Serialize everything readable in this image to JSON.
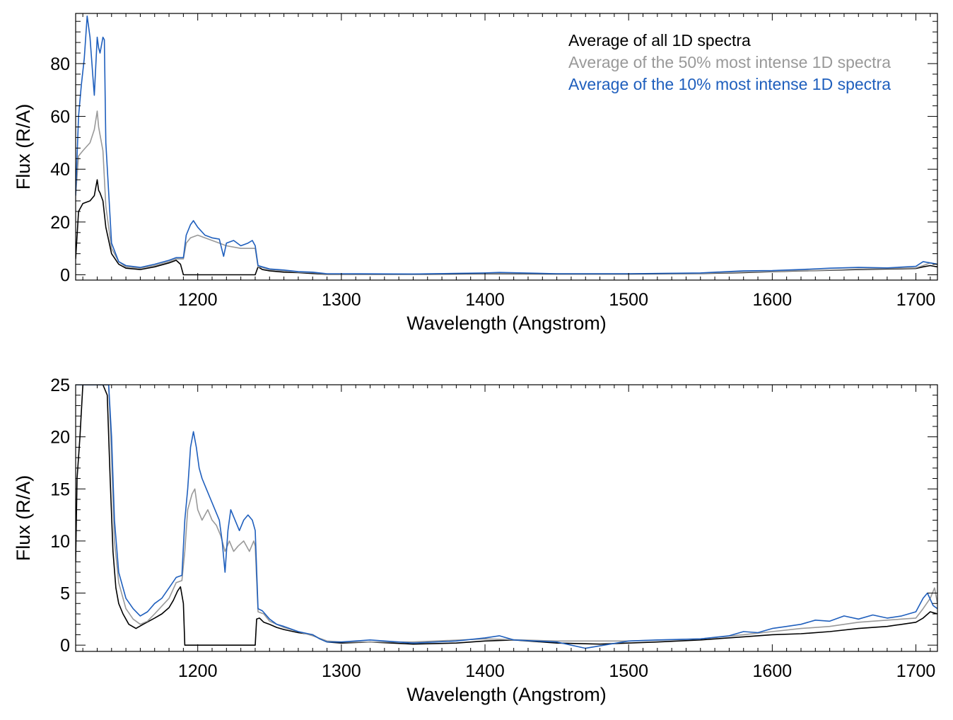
{
  "chart_data": [
    {
      "type": "line",
      "xlabel": "Wavelength (Angstrom)",
      "ylabel": "Flux (R/A)",
      "xlim": [
        1115,
        1715
      ],
      "ylim": [
        -2,
        99
      ],
      "xticks": [
        1200,
        1300,
        1400,
        1500,
        1600,
        1700
      ],
      "yticks": [
        0,
        20,
        40,
        60,
        80
      ],
      "legend_position": "top-right",
      "series": [
        {
          "name": "Average of all 1D spectra",
          "color": "#000000",
          "x": [
            1115,
            1117,
            1120,
            1125,
            1128,
            1130,
            1131,
            1132,
            1134,
            1136,
            1140,
            1145,
            1150,
            1160,
            1170,
            1180,
            1185,
            1188,
            1190,
            1240,
            1242,
            1245,
            1250,
            1260,
            1270,
            1280,
            1290,
            1300,
            1350,
            1400,
            1450,
            1500,
            1550,
            1580,
            1600,
            1620,
            1640,
            1660,
            1680,
            1700,
            1705,
            1710,
            1715
          ],
          "values": [
            6,
            24,
            27,
            28,
            30,
            36,
            32,
            31,
            28,
            18,
            8,
            4,
            2.5,
            2,
            3,
            4.5,
            5.5,
            4,
            0,
            0,
            3,
            2,
            1.5,
            1,
            0.8,
            0.5,
            0.2,
            0.2,
            0.2,
            0.4,
            0.3,
            0.3,
            0.5,
            0.8,
            1.2,
            1.5,
            1.7,
            2,
            2.2,
            2.4,
            3,
            3.5,
            3
          ]
        },
        {
          "name": "Average of the 50% most intense 1D spectra",
          "color": "#999999",
          "x": [
            1115,
            1117,
            1120,
            1125,
            1128,
            1130,
            1131,
            1132,
            1134,
            1136,
            1140,
            1145,
            1150,
            1160,
            1170,
            1180,
            1185,
            1190,
            1192,
            1195,
            1200,
            1210,
            1215,
            1220,
            1230,
            1240,
            1242,
            1245,
            1250,
            1260,
            1270,
            1280,
            1290,
            1300,
            1350,
            1400,
            1450,
            1500,
            1550,
            1580,
            1600,
            1620,
            1640,
            1660,
            1680,
            1700,
            1705,
            1710,
            1715
          ],
          "values": [
            30,
            45,
            47,
            50,
            55,
            62,
            56,
            53,
            47,
            26,
            10,
            5,
            3,
            2.5,
            3.5,
            5,
            6,
            6,
            12,
            14,
            15,
            13,
            12,
            11,
            10,
            10,
            3,
            2.8,
            2,
            1.5,
            1,
            0.8,
            0.3,
            0.3,
            0.3,
            0.6,
            0.4,
            0.4,
            0.6,
            1,
            1.3,
            1.6,
            1.8,
            2.2,
            2.4,
            2.6,
            3.5,
            4.5,
            4
          ]
        },
        {
          "name": "Average of the 10% most intense 1D spectra",
          "color": "#1f5fbd",
          "x": [
            1115,
            1117,
            1119,
            1121,
            1123,
            1125,
            1127,
            1128,
            1130,
            1131,
            1132,
            1134,
            1135,
            1136,
            1140,
            1145,
            1150,
            1160,
            1170,
            1180,
            1185,
            1190,
            1192,
            1195,
            1197,
            1200,
            1205,
            1210,
            1215,
            1218,
            1220,
            1225,
            1230,
            1235,
            1238,
            1240,
            1242,
            1245,
            1250,
            1260,
            1270,
            1280,
            1290,
            1300,
            1350,
            1400,
            1410,
            1450,
            1500,
            1550,
            1580,
            1600,
            1620,
            1640,
            1660,
            1680,
            1700,
            1705,
            1710,
            1715
          ],
          "values": [
            30,
            60,
            72,
            82,
            98,
            90,
            75,
            68,
            90,
            86,
            84,
            90,
            89,
            50,
            12,
            5,
            3.5,
            2.8,
            4,
            5.5,
            6.5,
            6.5,
            15,
            19,
            20.5,
            18,
            15,
            14,
            13.5,
            7,
            12,
            13,
            11,
            12,
            13,
            11,
            3.5,
            3,
            2.2,
            1.8,
            1.2,
            1,
            0.4,
            0.4,
            0.3,
            0.7,
            0.9,
            0.4,
            0.4,
            0.7,
            1.5,
            1.6,
            2,
            2.5,
            2.8,
            2.6,
            3.2,
            5,
            4.5,
            4
          ]
        }
      ]
    },
    {
      "type": "line",
      "xlabel": "Wavelength (Angstrom)",
      "ylabel": "Flux (R/A)",
      "xlim": [
        1115,
        1715
      ],
      "ylim": [
        -0.6,
        25
      ],
      "xticks": [
        1200,
        1300,
        1400,
        1500,
        1600,
        1700
      ],
      "yticks": [
        0,
        5,
        10,
        15,
        20,
        25
      ],
      "series": [
        {
          "name": "Average of all 1D spectra",
          "color": "#000000",
          "x": [
            1115,
            1116,
            1118,
            1120,
            1125,
            1130,
            1134,
            1137,
            1139,
            1141,
            1143,
            1145,
            1148,
            1152,
            1157,
            1162,
            1166,
            1170,
            1175,
            1180,
            1183,
            1186,
            1188,
            1190,
            1191,
            1240,
            1241,
            1243,
            1246,
            1250,
            1255,
            1260,
            1270,
            1280,
            1285,
            1290,
            1300,
            1320,
            1350,
            1380,
            1400,
            1420,
            1450,
            1480,
            1500,
            1520,
            1550,
            1580,
            1600,
            1620,
            1640,
            1660,
            1680,
            1700,
            1705,
            1710,
            1715
          ],
          "values": [
            8,
            16,
            20,
            25,
            25,
            25,
            25,
            24,
            16,
            9,
            5.5,
            4,
            3,
            2,
            1.6,
            2,
            2.3,
            2.6,
            3,
            3.6,
            4.3,
            5.2,
            5.6,
            4,
            0,
            0,
            2.5,
            2.6,
            2.2,
            2,
            1.7,
            1.5,
            1.2,
            1,
            0.6,
            0.3,
            0.2,
            0.3,
            0.1,
            0.2,
            0.4,
            0.5,
            0.2,
            0.1,
            0.2,
            0.3,
            0.5,
            0.8,
            1,
            1.1,
            1.3,
            1.6,
            1.8,
            2.2,
            2.6,
            3.2,
            3
          ]
        },
        {
          "name": "Average of the 50% most intense 1D spectra",
          "color": "#999999",
          "x": [
            1115,
            1120,
            1130,
            1138,
            1140,
            1142,
            1145,
            1150,
            1155,
            1160,
            1165,
            1170,
            1180,
            1185,
            1189,
            1191,
            1193,
            1196,
            1198,
            1200,
            1203,
            1207,
            1210,
            1213,
            1216,
            1219,
            1222,
            1225,
            1228,
            1232,
            1236,
            1239,
            1240,
            1242,
            1246,
            1250,
            1260,
            1270,
            1280,
            1290,
            1300,
            1350,
            1400,
            1450,
            1500,
            1550,
            1580,
            1600,
            1620,
            1640,
            1660,
            1680,
            1700,
            1705,
            1710,
            1713,
            1715
          ],
          "values": [
            25,
            25,
            25,
            25,
            18,
            10,
            6,
            3.5,
            2.5,
            2,
            2.3,
            3,
            4.5,
            6,
            6.2,
            9,
            13,
            14.5,
            15,
            13,
            12,
            13,
            12,
            11.5,
            10.5,
            9,
            10,
            9,
            9.5,
            10,
            9,
            10,
            9.5,
            3.2,
            3,
            2.3,
            1.7,
            1.3,
            0.9,
            0.4,
            0.3,
            0.3,
            0.6,
            0.4,
            0.4,
            0.6,
            1,
            1.3,
            1.6,
            1.8,
            2.2,
            2.4,
            2.6,
            3.5,
            4.5,
            5.5,
            4
          ]
        },
        {
          "name": "Average of the 10% most intense 1D spectra",
          "color": "#1f5fbd",
          "x": [
            1115,
            1120,
            1130,
            1138,
            1140,
            1142,
            1145,
            1150,
            1155,
            1160,
            1165,
            1170,
            1175,
            1180,
            1185,
            1189,
            1191,
            1193,
            1195,
            1197,
            1199,
            1201,
            1203,
            1206,
            1209,
            1212,
            1215,
            1217,
            1219,
            1221,
            1223,
            1226,
            1229,
            1232,
            1235,
            1238,
            1240,
            1242,
            1245,
            1250,
            1255,
            1260,
            1270,
            1280,
            1285,
            1290,
            1300,
            1320,
            1350,
            1380,
            1400,
            1410,
            1420,
            1450,
            1470,
            1500,
            1520,
            1550,
            1570,
            1580,
            1590,
            1600,
            1610,
            1620,
            1630,
            1640,
            1650,
            1660,
            1670,
            1680,
            1690,
            1700,
            1705,
            1708,
            1712,
            1715
          ],
          "values": [
            25,
            25,
            25,
            25,
            20,
            12,
            7,
            4.5,
            3.5,
            2.8,
            3.2,
            4,
            4.5,
            5.5,
            6.5,
            6.7,
            12,
            15,
            19,
            20.5,
            19,
            17,
            16,
            15,
            14,
            13,
            12,
            10,
            7,
            11,
            13,
            12,
            11,
            12,
            12.5,
            12,
            11,
            3.5,
            3.3,
            2.5,
            2,
            1.8,
            1.3,
            1,
            0.6,
            0.3,
            0.3,
            0.5,
            0.2,
            0.4,
            0.7,
            0.9,
            0.5,
            0.3,
            -0.3,
            0.4,
            0.5,
            0.6,
            0.9,
            1.3,
            1.2,
            1.6,
            1.8,
            2,
            2.4,
            2.3,
            2.8,
            2.5,
            2.9,
            2.6,
            2.8,
            3.2,
            4.5,
            5,
            3.8,
            3.5
          ]
        }
      ]
    }
  ]
}
